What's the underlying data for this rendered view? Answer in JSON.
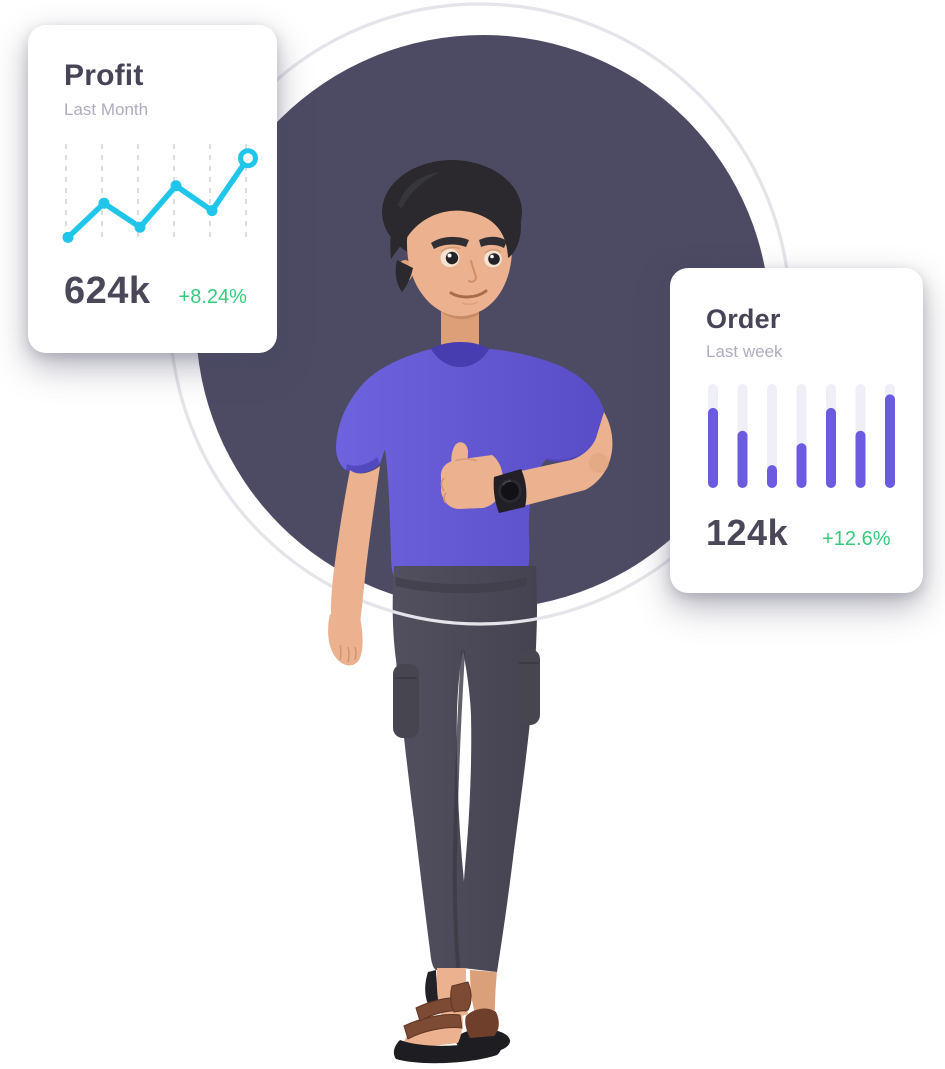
{
  "scene": {
    "illustration": "3D man in purple t-shirt giving thumbs up",
    "circle_color": "#4c4b63",
    "ring_color": "#e4e4ea",
    "page_background": "#ffffff"
  },
  "colors": {
    "accent_cyan": "#1fc6e9",
    "accent_purple": "#6a5be0",
    "bar_track": "#efeff7",
    "positive_green": "#35cb7a",
    "text_dark": "#474457",
    "text_muted": "#aeadbd"
  },
  "cards": [
    {
      "title": "Profit",
      "subtitle": "Last Month",
      "value": "624k",
      "delta": "+8.24%"
    },
    {
      "title": "Order",
      "subtitle": "Last week",
      "value": "124k",
      "delta": "+12.6%"
    }
  ],
  "chart_data": [
    {
      "type": "line",
      "title": "Profit",
      "subtitle": "Last Month",
      "summary_value": "624k",
      "delta": "+8.24%",
      "x_count": 6,
      "values": [
        4,
        41,
        15,
        60,
        33,
        90
      ],
      "ylim": [
        0,
        100
      ],
      "grid": "vertical-dashed",
      "line_color": "#1fc6e9",
      "grid_color": "#d9dae3",
      "last_point_style": "open-circle"
    },
    {
      "type": "bar",
      "title": "Order",
      "subtitle": "Last week",
      "summary_value": "124k",
      "delta": "+12.6%",
      "values": [
        77,
        55,
        22,
        43,
        77,
        55,
        90
      ],
      "ylim": [
        0,
        100
      ],
      "bar_color": "#6a5be0",
      "track_color": "#efeff7",
      "grid": "off"
    }
  ]
}
